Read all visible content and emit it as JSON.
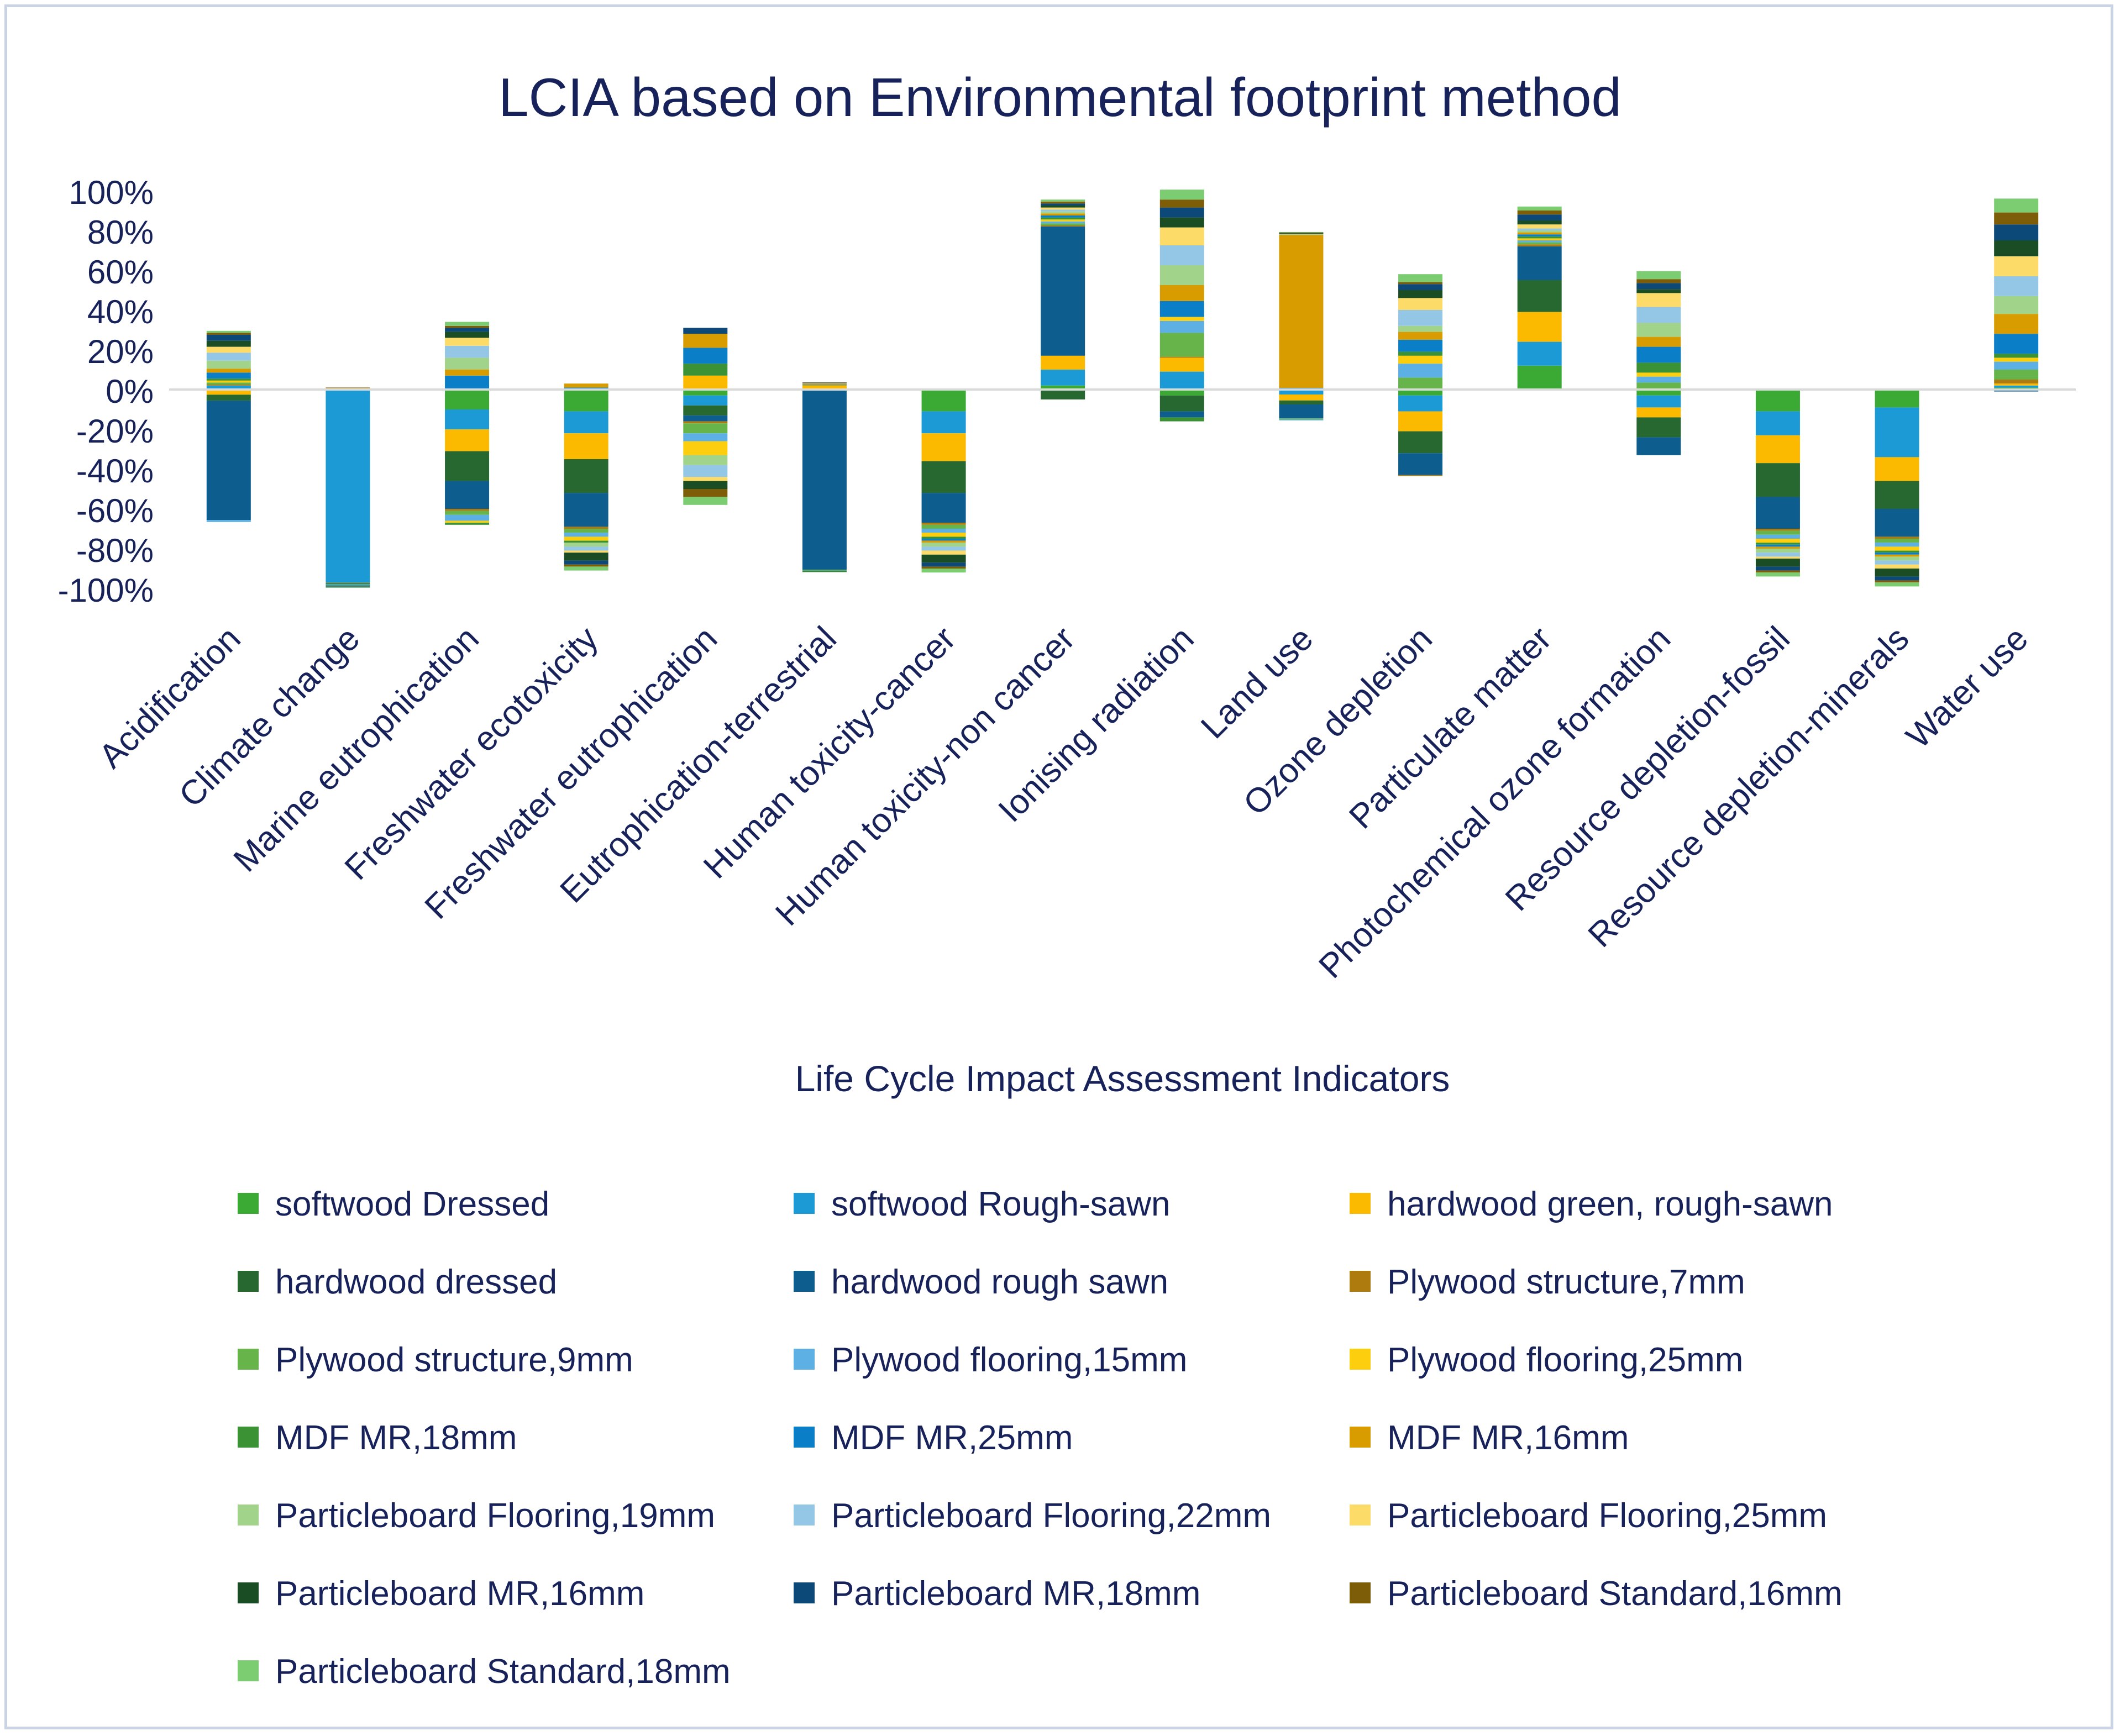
{
  "chart_data": {
    "type": "bar",
    "stacked": true,
    "title": "LCIA based on Environmental footprint method",
    "xlabel": "Life Cycle Impact Assessment Indicators",
    "ylabel": "",
    "ylim": [
      -100,
      100
    ],
    "yticks": [
      "100%",
      "80%",
      "60%",
      "40%",
      "20%",
      "0%",
      "-20%",
      "-40%",
      "-60%",
      "-80%",
      "-100%"
    ],
    "grid": false,
    "legend_position": "bottom",
    "categories": [
      "Acidification",
      "Climate change",
      "Marine eutrophication",
      "Freshwater ecotoxicity",
      "Freshwater eutrophication",
      "Eutrophication-terrestrial",
      "Human toxicity-cancer",
      "Human toxicity-non cancer",
      "Ionising radiation",
      "Land use",
      "Ozone depletion",
      "Particulate matter",
      "Photochemical ozone formation",
      "Resource depletion-fossil",
      "Resource depletion-minerals",
      "Water use"
    ],
    "series": [
      {
        "name": "softwood Dressed",
        "color": "#3aaa35",
        "values": [
          -0.6,
          -0.2,
          -10,
          -11,
          -3,
          -0.2,
          -11,
          2,
          -3,
          -0.5,
          -3,
          12,
          -3,
          -11,
          -9,
          1
        ]
      },
      {
        "name": "softwood Rough-sawn",
        "color": "#1b9ad6",
        "values": [
          2,
          -97,
          -10,
          -11,
          -5,
          -0.2,
          -11,
          8,
          9,
          -2,
          -8,
          12,
          -6,
          -12,
          -25,
          1
        ]
      },
      {
        "name": "hardwood green, rough-sawn",
        "color": "#fbb900",
        "values": [
          -2,
          -0.2,
          -11,
          -13,
          7,
          2,
          -14,
          7,
          7,
          -3,
          -10,
          15,
          -5,
          -14,
          -12,
          1
        ]
      },
      {
        "name": "hardwood dressed",
        "color": "#26682f",
        "values": [
          -3,
          -0.2,
          -15,
          -17,
          -5,
          -0.2,
          -16,
          -5,
          -8,
          -2,
          -11,
          16,
          -10,
          -17,
          -14,
          -0.5
        ]
      },
      {
        "name": "hardwood rough sawn",
        "color": "#0d5e8f",
        "values": [
          -60,
          -0.2,
          -14,
          -17,
          -3,
          -90,
          -15,
          65,
          -3,
          -7,
          -11,
          17,
          -9,
          -16,
          -14,
          -0.5
        ]
      },
      {
        "name": "Plywood structure,7mm",
        "color": "#ae7b0e",
        "values": [
          0.5,
          0.2,
          -1,
          -1,
          -1,
          0.2,
          -1,
          0.5,
          0.5,
          0.2,
          -0.5,
          1,
          0.5,
          -1,
          -1,
          2
        ]
      },
      {
        "name": "Plywood structure,9mm",
        "color": "#67b44a",
        "values": [
          1,
          -0.2,
          -2,
          -2,
          -5,
          -0.2,
          -2,
          1,
          12,
          -0.5,
          6,
          1,
          3,
          -2,
          -2,
          5
        ]
      },
      {
        "name": "Plywood flooring,15mm",
        "color": "#5cb0e3",
        "values": [
          -1,
          -0.2,
          -3,
          -2,
          -4,
          -0.2,
          -2,
          1,
          6,
          -0.5,
          7,
          1,
          3,
          -2,
          -2,
          4
        ]
      },
      {
        "name": "Plywood flooring,25mm",
        "color": "#fcce0d",
        "values": [
          1,
          0.2,
          -1,
          -2,
          -7,
          0.2,
          -2,
          1,
          2,
          0.2,
          4,
          1,
          2,
          -2,
          -2,
          2
        ]
      },
      {
        "name": "MDF MR,18mm",
        "color": "#3b9235",
        "values": [
          1,
          -0.2,
          -1,
          -1,
          6,
          -0.2,
          -1,
          1,
          -2,
          0.2,
          2,
          1,
          5,
          -1,
          -1,
          2
        ]
      },
      {
        "name": "MDF MR,25mm",
        "color": "#0a7fc7",
        "values": [
          3,
          -0.2,
          7,
          1,
          8,
          0.2,
          -1,
          1,
          8,
          0.2,
          6,
          1,
          8,
          -1,
          -1,
          10
        ]
      },
      {
        "name": "MDF MR,16mm",
        "color": "#d99c00",
        "values": [
          2,
          0.2,
          3,
          2,
          7,
          0.2,
          -1,
          1,
          8,
          77,
          4,
          1,
          5,
          -1,
          -1,
          10
        ]
      },
      {
        "name": "Particleboard Flooring,19mm",
        "color": "#a1d48a",
        "values": [
          4,
          -0.2,
          6,
          -2,
          -5,
          -0.2,
          -2,
          1,
          10,
          0.2,
          3,
          1,
          7,
          -2,
          -2,
          9
        ]
      },
      {
        "name": "Particleboard Flooring,22mm",
        "color": "#94c6e6",
        "values": [
          4,
          -0.2,
          6,
          -2,
          -6,
          0.2,
          -2,
          1,
          10,
          0.2,
          8,
          1,
          8,
          -2,
          -2,
          10
        ]
      },
      {
        "name": "Particleboard Flooring,25mm",
        "color": "#fddb68",
        "values": [
          3,
          0.2,
          4,
          -1,
          -2,
          0.2,
          -2,
          1,
          9,
          0.2,
          6,
          2,
          7,
          -1,
          -2,
          10
        ]
      },
      {
        "name": "Particleboard MR,16mm",
        "color": "#1b4d24",
        "values": [
          3,
          -0.2,
          3,
          -4,
          -4,
          -0.2,
          -4,
          1,
          5,
          0.2,
          4,
          2,
          2,
          -4,
          -4,
          8
        ]
      },
      {
        "name": "Particleboard MR,18mm",
        "color": "#0d4978",
        "values": [
          3,
          -0.2,
          2,
          -2,
          3,
          0.2,
          -2,
          1,
          5,
          0.2,
          3,
          3,
          3,
          -2,
          -2,
          8
        ]
      },
      {
        "name": "Particleboard Standard,16mm",
        "color": "#7d5d07",
        "values": [
          1,
          0.2,
          1,
          -1,
          -4,
          0.2,
          -1,
          1,
          4,
          0.2,
          1,
          2,
          2,
          -1,
          -1,
          6
        ]
      },
      {
        "name": "Particleboard Standard,18mm",
        "color": "#7ccd72",
        "values": [
          1,
          -0.2,
          2,
          -2,
          -4,
          -0.2,
          -2,
          1,
          5,
          0.2,
          4,
          2,
          4,
          -2,
          -2,
          7
        ]
      }
    ]
  }
}
